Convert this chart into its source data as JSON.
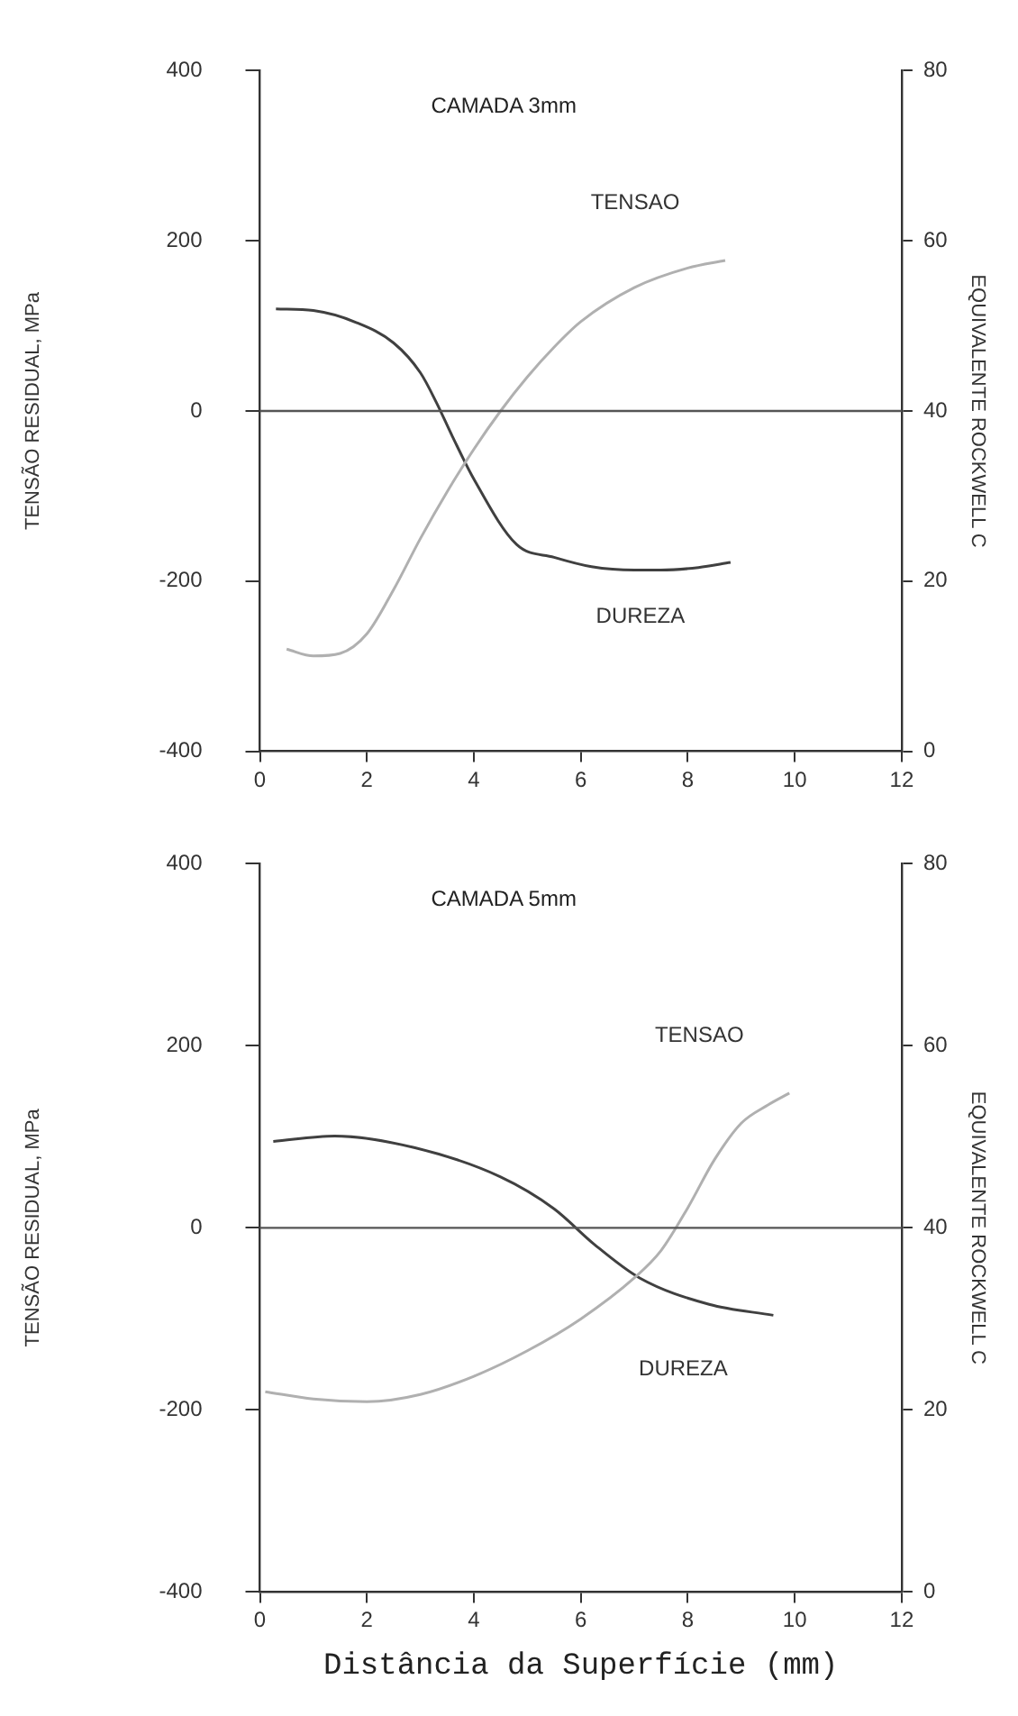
{
  "chart_data": [
    {
      "type": "line",
      "title": "CAMADA 3mm",
      "ylabel": "TENSÃO RESIDUAL, MPa",
      "y2label": "EQUIVALENTE ROCKWELL C",
      "xlim": [
        0,
        12
      ],
      "xticks": [
        0,
        2,
        4,
        6,
        8,
        10,
        12
      ],
      "ylim": [
        -400,
        400
      ],
      "yticks": [
        -400,
        -200,
        0,
        200,
        400
      ],
      "y2lim": [
        0,
        80
      ],
      "y2ticks": [
        0,
        20,
        40,
        60,
        80
      ],
      "grid": false,
      "legend": false,
      "marker": "none",
      "line_style": "solid",
      "ref_lines": [
        {
          "axis": "y",
          "value": 0,
          "color": "#555555"
        }
      ],
      "series": [
        {
          "name": "TENSAO",
          "color": "#b0b0b0",
          "x": [
            0.5,
            1,
            1.5,
            2,
            2.5,
            3,
            3.5,
            4,
            4.5,
            5,
            5.5,
            6,
            7,
            8,
            8.7
          ],
          "values": [
            -280,
            -288,
            -285,
            -262,
            -210,
            -150,
            -95,
            -45,
            0,
            40,
            75,
            105,
            145,
            168,
            177
          ]
        },
        {
          "name": "DUREZA",
          "color": "#404040",
          "axis": "y2",
          "x": [
            0.3,
            1,
            1.8,
            2.5,
            3,
            3.3,
            3.6,
            4,
            4.8,
            5.5,
            6.2,
            7,
            7.5,
            8.2,
            8.8
          ],
          "values": [
            52,
            51.8,
            50.4,
            48,
            44.5,
            41,
            37,
            32,
            24.3,
            22.8,
            21.7,
            21.3,
            21.3,
            21.6,
            22.2
          ]
        }
      ]
    },
    {
      "type": "line",
      "title": "CAMADA 5mm",
      "ylabel": "TENSÃO RESIDUAL, MPa",
      "y2label": "EQUIVALENTE ROCKWELL C",
      "xlabel": "Distância da Superfície (mm)",
      "xlim": [
        0,
        12
      ],
      "xticks": [
        0,
        2,
        4,
        6,
        8,
        10,
        12
      ],
      "ylim": [
        -400,
        400
      ],
      "yticks": [
        -400,
        -200,
        0,
        200,
        400
      ],
      "y2lim": [
        0,
        80
      ],
      "y2ticks": [
        0,
        20,
        40,
        60,
        80
      ],
      "grid": false,
      "legend": false,
      "marker": "none",
      "line_style": "solid",
      "ref_lines": [
        {
          "axis": "y",
          "value": 0,
          "color": "#555555"
        }
      ],
      "series": [
        {
          "name": "TENSAO",
          "color": "#b0b0b0",
          "x": [
            0.1,
            1,
            2,
            3,
            4,
            5,
            6,
            7,
            7.5,
            8,
            8.5,
            9,
            9.5,
            9.9
          ],
          "values": [
            -180,
            -188,
            -191,
            -183,
            -163,
            -135,
            -100,
            -55,
            -25,
            22,
            75,
            115,
            135,
            148
          ]
        },
        {
          "name": "DUREZA",
          "color": "#404040",
          "axis": "y2",
          "x": [
            0.25,
            1.4,
            2.9,
            4.5,
            5.5,
            6.25,
            7.1,
            8.4,
            9.6
          ],
          "values": [
            49.5,
            50.1,
            48.8,
            45.6,
            42.1,
            38.2,
            34.5,
            31.6,
            30.4
          ]
        }
      ]
    }
  ]
}
